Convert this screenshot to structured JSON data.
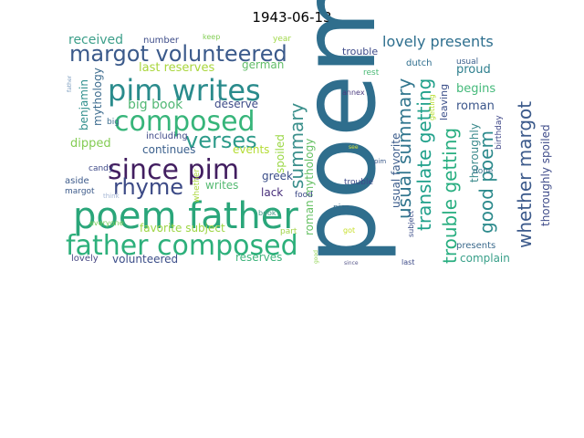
{
  "title": "1943-06-13",
  "colors": {
    "background": "#ffffff",
    "palette": "viridis"
  },
  "words": [
    {
      "text": "poem",
      "color": "#2f6e8d"
    },
    {
      "text": "poem father",
      "color": "#2aa67a"
    },
    {
      "text": "father composed",
      "color": "#2db07b"
    },
    {
      "text": "since pim",
      "color": "#421e60"
    },
    {
      "text": "pim writes",
      "color": "#2a8b8c"
    },
    {
      "text": "composed",
      "color": "#37b57a"
    },
    {
      "text": "margot volunteered",
      "color": "#3b5a8b"
    },
    {
      "text": "verses",
      "color": "#2d9b8a"
    },
    {
      "text": "rhyme",
      "color": "#3c4a86"
    },
    {
      "text": "usual summary",
      "color": "#31768e"
    },
    {
      "text": "summary",
      "color": "#3a8f8b"
    },
    {
      "text": "translate getting",
      "color": "#1fa08a"
    },
    {
      "text": "trouble getting",
      "color": "#28ae80"
    },
    {
      "text": "good poem",
      "color": "#2c8a8c"
    },
    {
      "text": "whether margot",
      "color": "#3c5a8b"
    },
    {
      "text": "lovely presents",
      "color": "#2e6f8e"
    },
    {
      "text": "big book",
      "color": "#52b875"
    },
    {
      "text": "last reserves",
      "color": "#a9d63c"
    },
    {
      "text": "received",
      "color": "#3d9f8a"
    },
    {
      "text": "number",
      "color": "#3e4d89"
    },
    {
      "text": "keep",
      "color": "#85cf58"
    },
    {
      "text": "year",
      "color": "#a0d848"
    },
    {
      "text": "german",
      "color": "#61bd68"
    },
    {
      "text": "roman mythology",
      "color": "#65c063"
    },
    {
      "text": "usual favorite",
      "color": "#3c5d8c"
    },
    {
      "text": "mythology",
      "color": "#3c6b8d"
    },
    {
      "text": "benjamin",
      "color": "#2f8e8c"
    },
    {
      "text": "deserve",
      "color": "#3e4c89"
    },
    {
      "text": "spoiled",
      "color": "#9ad745"
    },
    {
      "text": "proud",
      "color": "#2e7f8e"
    },
    {
      "text": "begins",
      "color": "#44b97a"
    },
    {
      "text": "roman",
      "color": "#3b568b"
    },
    {
      "text": "leaving",
      "color": "#3a4e88"
    },
    {
      "text": "dutch",
      "color": "#2e6e8e"
    },
    {
      "text": "usual",
      "color": "#3b5f8c"
    },
    {
      "text": "rest",
      "color": "#4bba76"
    },
    {
      "text": "trouble",
      "color": "#3d4a89"
    },
    {
      "text": "annex",
      "color": "#4c3c80"
    },
    {
      "text": "getting",
      "color": "#b8dd2f"
    },
    {
      "text": "birthday",
      "color": "#3f4788"
    },
    {
      "text": "thoroughly",
      "color": "#3b8a8c"
    },
    {
      "text": "thoroughly spoiled",
      "color": "#3f4c8a"
    },
    {
      "text": "father",
      "color": "#7e9ec0"
    },
    {
      "text": "big",
      "color": "#3e6f8f"
    },
    {
      "text": "including",
      "color": "#3f4a88"
    },
    {
      "text": "dipped",
      "color": "#84cc54"
    },
    {
      "text": "continues",
      "color": "#3a5f8c"
    },
    {
      "text": "events",
      "color": "#b5dc35"
    },
    {
      "text": "greek",
      "color": "#3a4d88"
    },
    {
      "text": "lack",
      "color": "#472e7a"
    },
    {
      "text": "candy",
      "color": "#3e4a88"
    },
    {
      "text": "aside",
      "color": "#3d5b8b"
    },
    {
      "text": "margot",
      "color": "#3d5b8b"
    },
    {
      "text": "think",
      "color": "#a5b6d4"
    },
    {
      "text": "whether",
      "color": "#aad63a"
    },
    {
      "text": "writes",
      "color": "#55ba72"
    },
    {
      "text": "favorite subject",
      "color": "#9dd544"
    },
    {
      "text": "book",
      "color": "#4a9a88"
    },
    {
      "text": "food",
      "color": "#3e4a88"
    },
    {
      "text": "part",
      "color": "#a3d44a"
    },
    {
      "text": "good",
      "color": "#8ed34d"
    },
    {
      "text": "got",
      "color": "#c7df2a"
    },
    {
      "text": "since",
      "color": "#5a5a8c"
    },
    {
      "text": "nice",
      "color": "#3b6c8c"
    },
    {
      "text": "see",
      "color": "#d8e13a"
    },
    {
      "text": "pim",
      "color": "#3d5c8b"
    },
    {
      "text": "subject",
      "color": "#3a4c88"
    },
    {
      "text": "last",
      "color": "#3d4a88"
    },
    {
      "text": "everyone",
      "color": "#78cc5a"
    },
    {
      "text": "lovely",
      "color": "#4a4a86"
    },
    {
      "text": "volunteered",
      "color": "#3c4e89"
    },
    {
      "text": "reserves",
      "color": "#3fb47c"
    },
    {
      "text": "complain",
      "color": "#3aa08a"
    },
    {
      "text": "presents",
      "color": "#3b6a8c"
    },
    {
      "text": "done",
      "color": "#3b768d"
    },
    {
      "text": "trouble",
      "color": "#3d4a89"
    }
  ]
}
